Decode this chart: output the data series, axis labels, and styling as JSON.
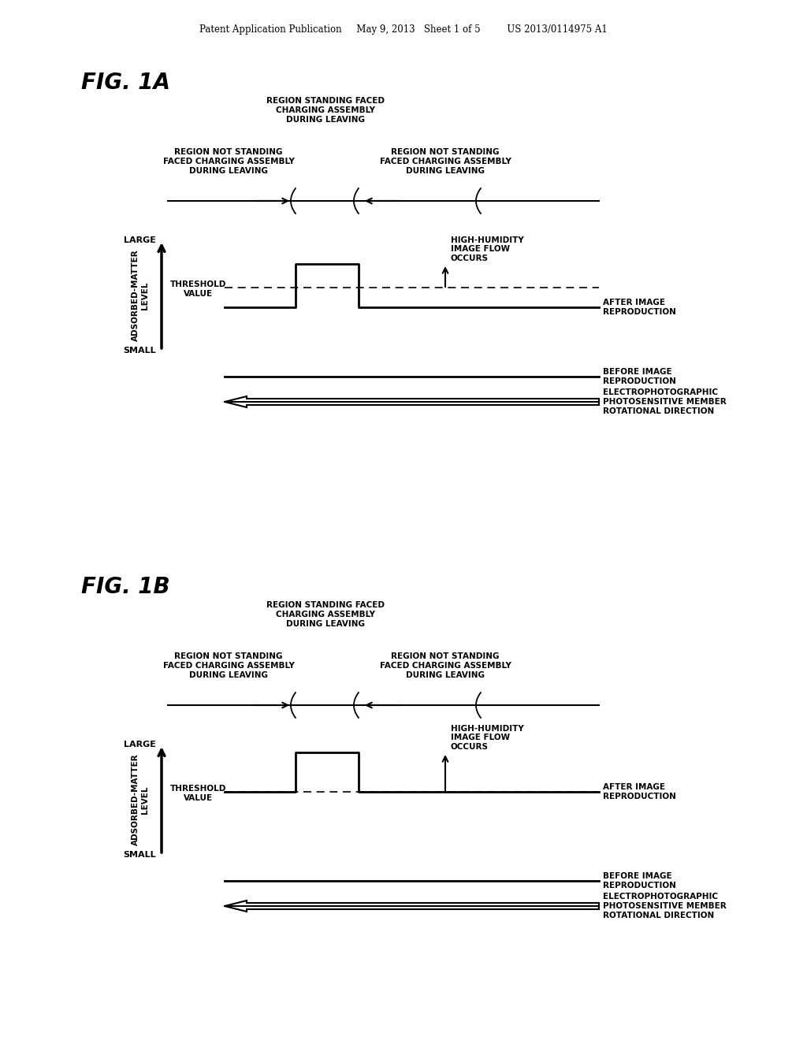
{
  "bg_color": "#ffffff",
  "header_text": "Patent Application Publication     May 9, 2013   Sheet 1 of 5         US 2013/0114975 A1",
  "fig1a_label": "FIG. 1A",
  "fig1b_label": "FIG. 1B",
  "region_center_label": "REGION STANDING FACED\nCHARGING ASSEMBLY\nDURING LEAVING",
  "region_left_label": "REGION NOT STANDING\nFACED CHARGING ASSEMBLY\nDURING LEAVING",
  "region_right_label": "REGION NOT STANDING\nFACED CHARGING ASSEMBLY\nDURING LEAVING",
  "large_label": "LARGE",
  "small_label": "SMALL",
  "threshold_label": "THRESHOLD\nVALUE",
  "adsorbed_label": "ADSORBED-MATTER\nLEVEL",
  "high_humidity_label": "HIGH-HUMIDITY\nIMAGE FLOW\nOCCURS",
  "after_image_label": "AFTER IMAGE\nREPRODUCTION",
  "before_image_label": "BEFORE IMAGE\nREPRODUCTION",
  "rotation_label": "ELECTROPHOTOGRAPHIC\nPHOTOSENSITIVE MEMBER\nROTATIONAL DIRECTION"
}
